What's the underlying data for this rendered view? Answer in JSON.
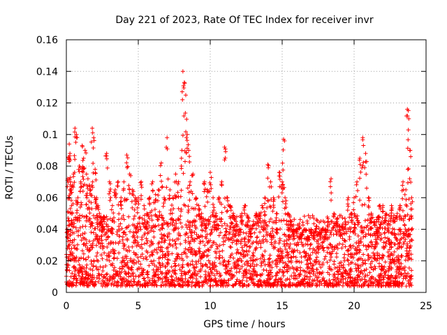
{
  "chart_data": {
    "type": "scatter",
    "title": "Day 221 of 2023, Rate Of TEC Index for receiver invr",
    "xlabel": "GPS time / hours",
    "ylabel": "ROTI / TECUs",
    "xlim": [
      0,
      25
    ],
    "ylim": [
      0,
      0.16
    ],
    "xticks": [
      0,
      5,
      10,
      15,
      20,
      25
    ],
    "xtick_labels": [
      "0",
      "5",
      "10",
      "15",
      "20",
      "25"
    ],
    "yticks": [
      0,
      0.02,
      0.04,
      0.06,
      0.08,
      0.1,
      0.12,
      0.14,
      0.16
    ],
    "ytick_labels": [
      "0",
      "0.02",
      "0.04",
      "0.06",
      "0.08",
      "0.1",
      "0.12",
      "0.14",
      "0.16"
    ],
    "grid": true,
    "marker": "+",
    "series_color": "#ff0000",
    "series": [
      {
        "name": "ROTI",
        "x": [
          0.05,
          0.1,
          0.15,
          0.2,
          0.25,
          0.3,
          0.35,
          0.4,
          0.5,
          0.6,
          0.7,
          0.8,
          0.9,
          1.0,
          1.1,
          1.2,
          1.3,
          1.4,
          1.5,
          1.6,
          1.7,
          1.8,
          1.9,
          2.0,
          2.1,
          2.2,
          2.3,
          2.4,
          2.5,
          2.6,
          2.8,
          3.0,
          3.2,
          3.4,
          3.6,
          3.8,
          4.0,
          4.2,
          4.4,
          4.6,
          4.8,
          5.0,
          5.2,
          5.4,
          5.6,
          5.8,
          6.0,
          6.2,
          6.4,
          6.6,
          6.8,
          7.0,
          7.2,
          7.4,
          7.6,
          7.8,
          8.0,
          8.1,
          8.2,
          8.3,
          8.4,
          8.5,
          8.6,
          8.8,
          9.0,
          9.2,
          9.4,
          9.6,
          9.8,
          10.0,
          10.2,
          10.4,
          10.6,
          10.8,
          11.0,
          11.2,
          11.4,
          11.6,
          11.8,
          12.0,
          12.2,
          12.4,
          12.6,
          12.8,
          13.0,
          13.2,
          13.4,
          13.6,
          13.8,
          14.0,
          14.2,
          14.4,
          14.6,
          14.8,
          15.0,
          15.1,
          15.2,
          15.4,
          15.6,
          15.8,
          16.0,
          16.2,
          16.4,
          16.6,
          16.8,
          17.0,
          17.2,
          17.4,
          17.6,
          17.8,
          18.0,
          18.2,
          18.4,
          18.6,
          18.8,
          19.0,
          19.2,
          19.4,
          19.6,
          19.8,
          20.0,
          20.2,
          20.4,
          20.6,
          20.8,
          21.0,
          21.2,
          21.4,
          21.6,
          21.8,
          22.0,
          22.2,
          22.4,
          22.6,
          22.8,
          23.0,
          23.2,
          23.4,
          23.6,
          23.7,
          23.8,
          23.9,
          24.0
        ],
        "y": [
          0.04,
          0.072,
          0.06,
          0.094,
          0.088,
          0.07,
          0.065,
          0.05,
          0.075,
          0.104,
          0.1,
          0.06,
          0.08,
          0.07,
          0.093,
          0.085,
          0.09,
          0.075,
          0.072,
          0.068,
          0.065,
          0.104,
          0.098,
          0.078,
          0.06,
          0.055,
          0.05,
          0.045,
          0.042,
          0.048,
          0.088,
          0.07,
          0.055,
          0.065,
          0.07,
          0.06,
          0.07,
          0.087,
          0.075,
          0.065,
          0.06,
          0.06,
          0.07,
          0.055,
          0.05,
          0.06,
          0.07,
          0.062,
          0.065,
          0.082,
          0.06,
          0.098,
          0.065,
          0.06,
          0.075,
          0.07,
          0.085,
          0.14,
          0.133,
          0.125,
          0.1,
          0.09,
          0.07,
          0.075,
          0.06,
          0.055,
          0.05,
          0.07,
          0.065,
          0.076,
          0.06,
          0.05,
          0.06,
          0.07,
          0.092,
          0.06,
          0.055,
          0.05,
          0.045,
          0.04,
          0.05,
          0.055,
          0.048,
          0.04,
          0.045,
          0.05,
          0.05,
          0.055,
          0.06,
          0.081,
          0.07,
          0.06,
          0.05,
          0.076,
          0.07,
          0.097,
          0.06,
          0.05,
          0.045,
          0.04,
          0.04,
          0.042,
          0.038,
          0.04,
          0.035,
          0.04,
          0.038,
          0.042,
          0.038,
          0.04,
          0.04,
          0.045,
          0.072,
          0.05,
          0.045,
          0.04,
          0.042,
          0.045,
          0.06,
          0.05,
          0.06,
          0.07,
          0.085,
          0.098,
          0.088,
          0.06,
          0.05,
          0.045,
          0.04,
          0.055,
          0.055,
          0.05,
          0.045,
          0.055,
          0.045,
          0.05,
          0.055,
          0.07,
          0.065,
          0.116,
          0.11,
          0.09,
          0.06
        ]
      }
    ],
    "background_band": "dense scatter of points between 0.005 and 0.03 across 0-24 hours"
  }
}
